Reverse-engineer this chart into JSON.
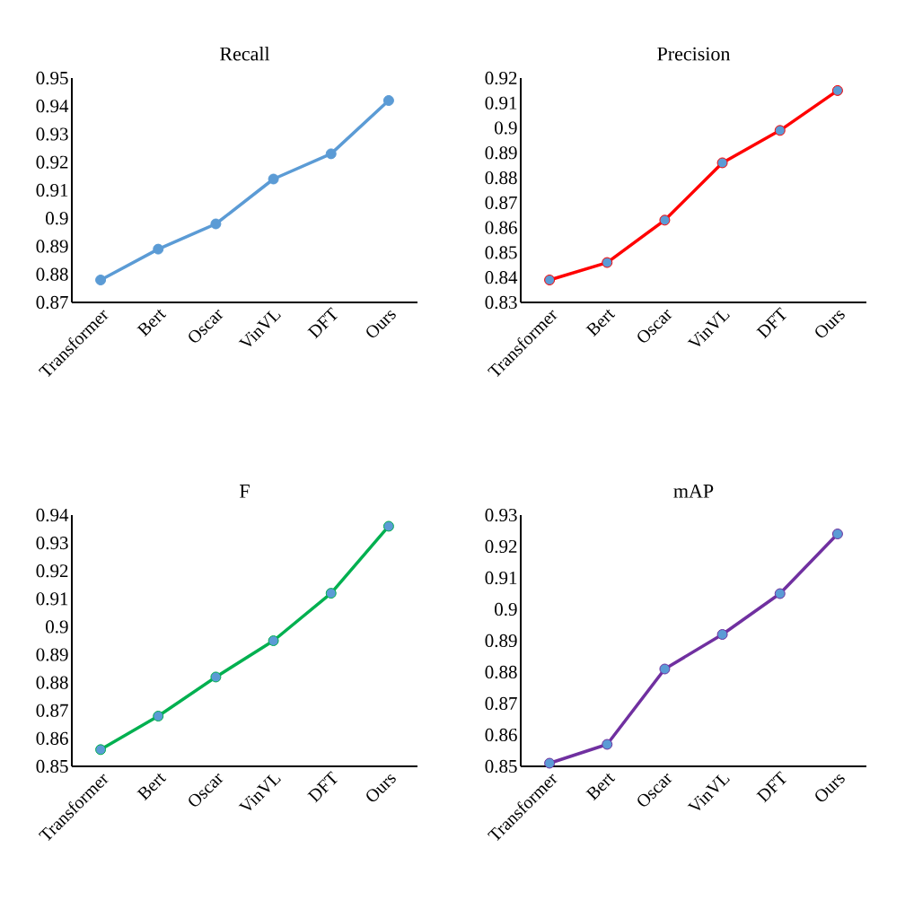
{
  "chart_data": [
    {
      "type": "line",
      "title": "Recall",
      "categories": [
        "Transformer",
        "Bert",
        "Oscar",
        "VinVL",
        "DFT",
        "Ours"
      ],
      "series": [
        {
          "color": "#5b9bd5",
          "colors": [
            "#5b9bd5",
            "#5b9bd5",
            "#5b9bd5",
            "#5b9bd5",
            "#5b9bd5",
            "#5b9bd5"
          ],
          "values": [
            0.878,
            0.889,
            0.898,
            0.914,
            0.923,
            0.942
          ]
        }
      ],
      "ylim": [
        0.87,
        0.95
      ],
      "yticks": [
        0.87,
        0.88,
        0.89,
        0.9,
        0.91,
        0.92,
        0.93,
        0.94,
        0.95
      ],
      "marker": "circle",
      "grid": false,
      "legend": false
    },
    {
      "type": "line",
      "title": "Precision",
      "categories": [
        "Transformer",
        "Bert",
        "Oscar",
        "VinVL",
        "DFT",
        "Ours"
      ],
      "series": [
        {
          "color": "#ff0000",
          "colors": [
            "#5b9bd5",
            "#5b9bd5",
            "#5b9bd5",
            "#5b9bd5",
            "#5b9bd5",
            "#5b9bd5"
          ],
          "values": [
            0.839,
            0.846,
            0.863,
            0.886,
            0.899,
            0.915
          ]
        }
      ],
      "ylim": [
        0.83,
        0.92
      ],
      "yticks": [
        0.83,
        0.84,
        0.85,
        0.86,
        0.87,
        0.88,
        0.89,
        0.9,
        0.91,
        0.92
      ],
      "marker": "circle",
      "grid": false,
      "legend": false
    },
    {
      "type": "line",
      "title": "F",
      "categories": [
        "Transformer",
        "Bert",
        "Oscar",
        "VinVL",
        "DFT",
        "Ours"
      ],
      "series": [
        {
          "color": "#00b050",
          "colors": [
            "#5b9bd5",
            "#5b9bd5",
            "#5b9bd5",
            "#5b9bd5",
            "#5b9bd5",
            "#5b9bd5"
          ],
          "values": [
            0.856,
            0.868,
            0.882,
            0.895,
            0.912,
            0.936
          ]
        }
      ],
      "ylim": [
        0.85,
        0.94
      ],
      "yticks": [
        0.85,
        0.86,
        0.87,
        0.88,
        0.89,
        0.9,
        0.91,
        0.92,
        0.93,
        0.94
      ],
      "marker": "circle",
      "grid": false,
      "legend": false
    },
    {
      "type": "line",
      "title": "mAP",
      "categories": [
        "Transformer",
        "Bert",
        "Oscar",
        "VinVL",
        "DFT",
        "Ours"
      ],
      "series": [
        {
          "color": "#7030a0",
          "colors": [
            "#5b9bd5",
            "#5b9bd5",
            "#5b9bd5",
            "#5b9bd5",
            "#5b9bd5",
            "#5b9bd5"
          ],
          "values": [
            0.851,
            0.857,
            0.881,
            0.892,
            0.905,
            0.924
          ]
        }
      ],
      "ylim": [
        0.85,
        0.93
      ],
      "yticks": [
        0.85,
        0.86,
        0.87,
        0.88,
        0.89,
        0.9,
        0.91,
        0.92,
        0.93
      ],
      "marker": "circle",
      "grid": false,
      "legend": false
    }
  ]
}
